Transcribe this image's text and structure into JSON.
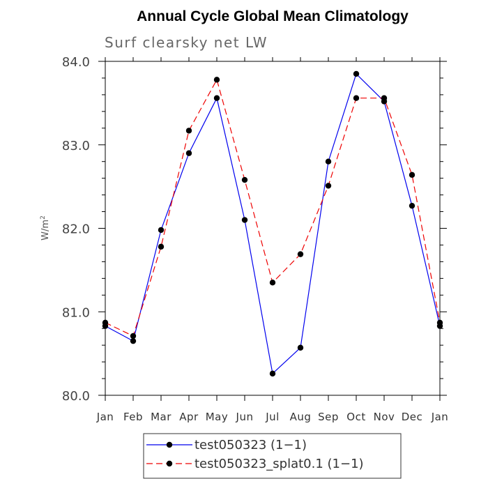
{
  "chart_data": {
    "type": "line",
    "title": "Annual Cycle Global Mean Climatology",
    "subtitle": "Surf clearsky net LW",
    "xlabel": "",
    "ylabel": "W/m",
    "ylabel_superscript": "2",
    "categories": [
      "Jan",
      "Feb",
      "Mar",
      "Apr",
      "May",
      "Jun",
      "Jul",
      "Aug",
      "Sep",
      "Oct",
      "Nov",
      "Dec",
      "Jan"
    ],
    "ylim": [
      80.0,
      84.0
    ],
    "yticks": [
      "80.0",
      "81.0",
      "82.0",
      "83.0",
      "84.0"
    ],
    "yticks_values": [
      80.0,
      81.0,
      82.0,
      83.0,
      84.0
    ],
    "series": [
      {
        "name": "test050323 (1−1)",
        "color": "#0000ee",
        "style": "solid",
        "values": [
          80.83,
          80.65,
          81.98,
          82.9,
          83.56,
          82.1,
          80.26,
          80.57,
          82.8,
          83.85,
          83.52,
          82.27,
          80.83
        ]
      },
      {
        "name": "test050323_splat0.1 (1−1)",
        "color": "#ee0000",
        "style": "dashed",
        "values": [
          80.87,
          80.71,
          81.78,
          83.17,
          83.78,
          82.58,
          81.35,
          81.69,
          82.51,
          83.56,
          83.56,
          82.64,
          80.87
        ]
      }
    ],
    "legend_position": "bottom-center",
    "grid": false
  }
}
